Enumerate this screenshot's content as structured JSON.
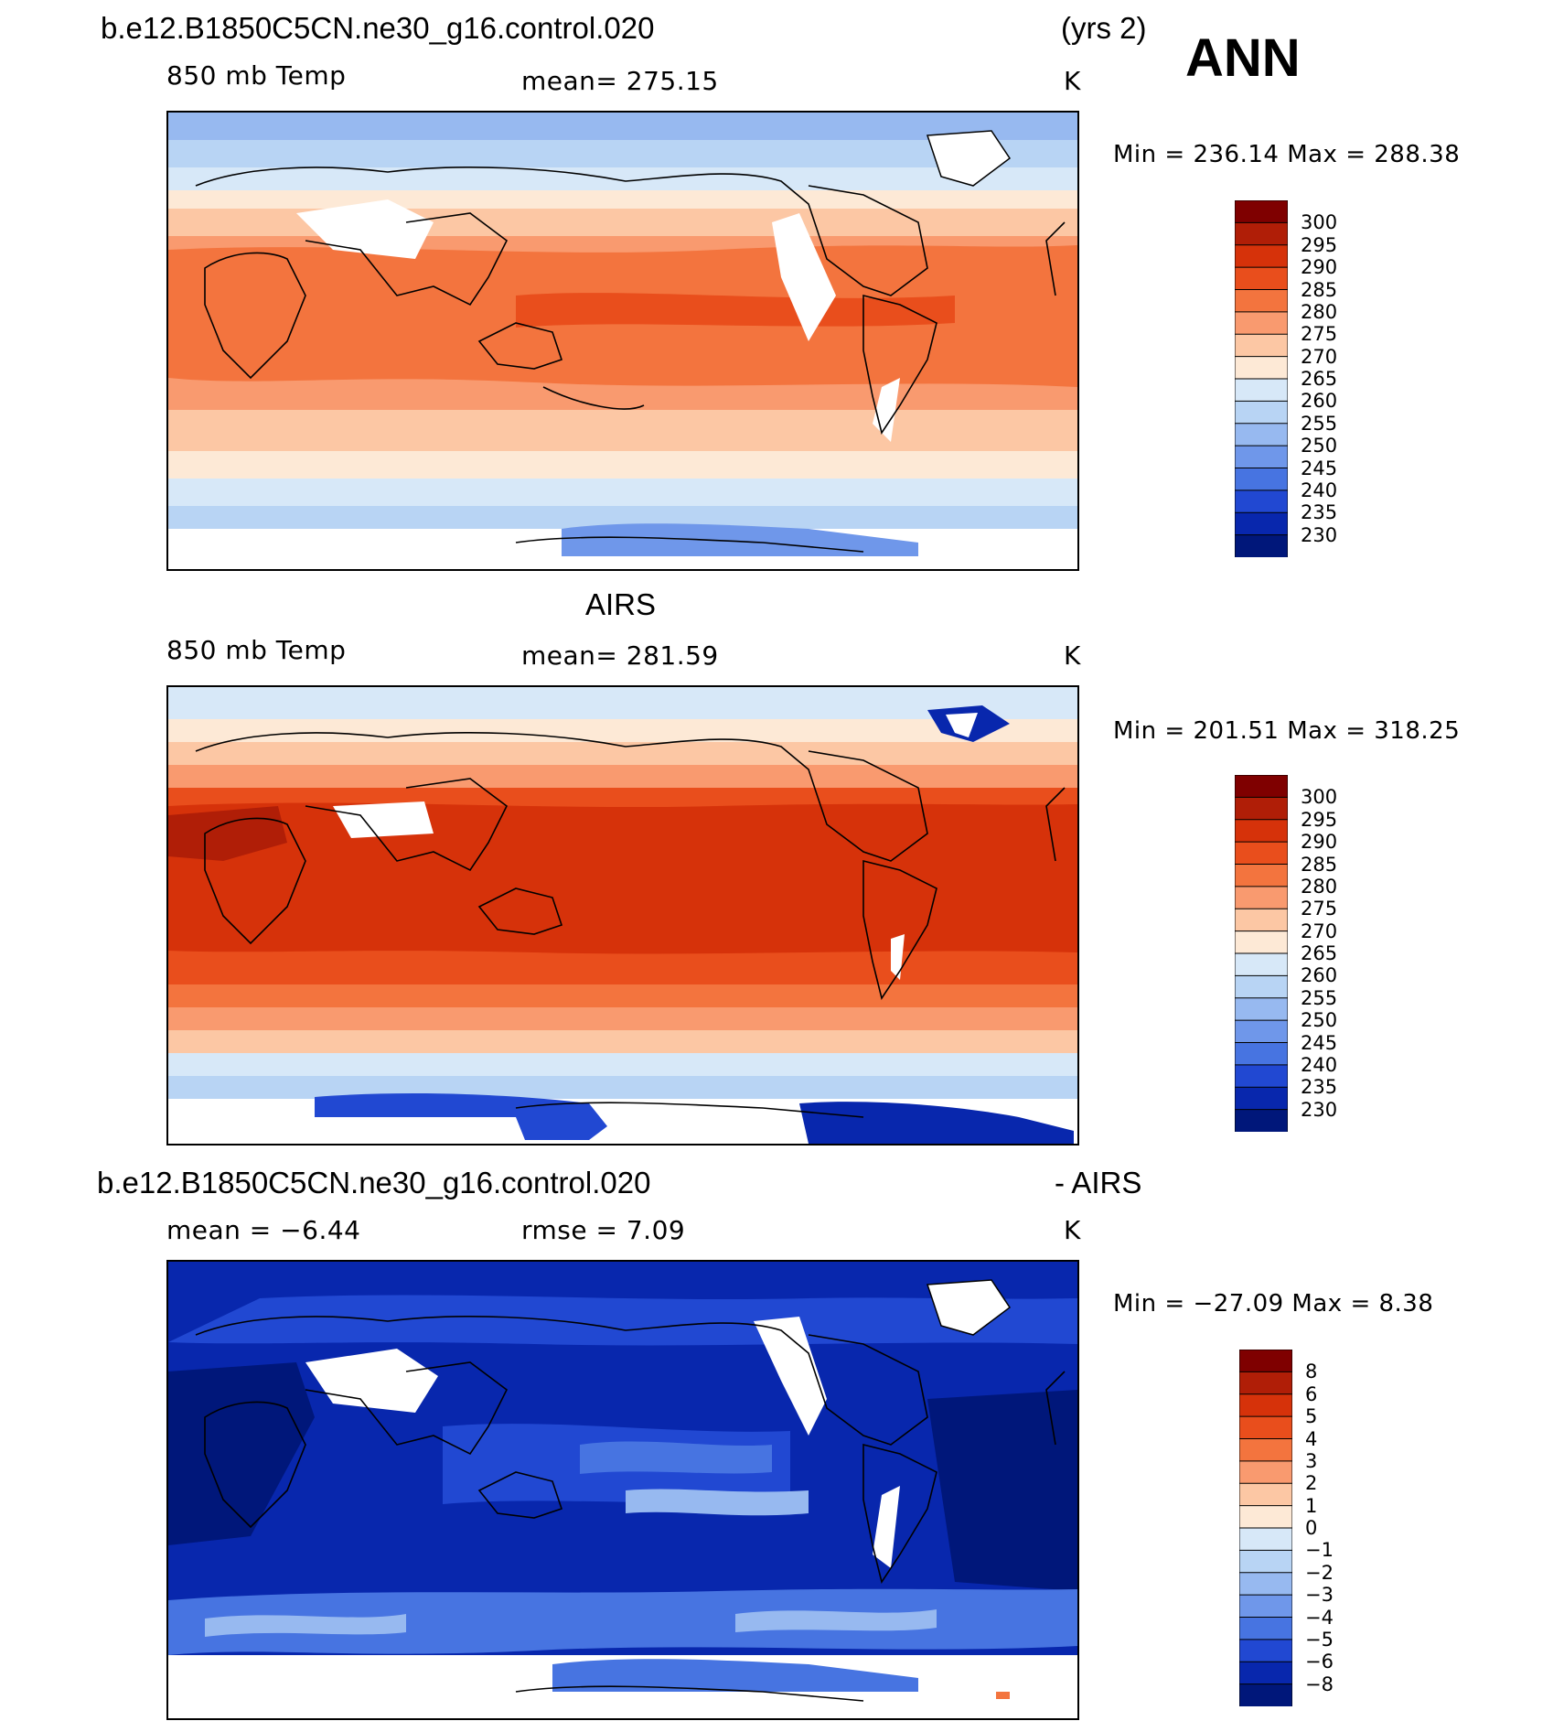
{
  "ann_label": "ANN",
  "panels": [
    {
      "id": "model",
      "title_left": "b.e12.B1850C5CN.ne30_g16.control.020",
      "title_right": "(yrs 2)",
      "stat_left": "850 mb Temp",
      "stat_mid": "mean=  275.15",
      "unit": "K",
      "minmax": "Min  =  236.14  Max  =  288.38",
      "colorbar_labels": [
        "300",
        "295",
        "290",
        "285",
        "280",
        "275",
        "270",
        "265",
        "260",
        "255",
        "250",
        "245",
        "240",
        "235",
        "230"
      ],
      "colorbar_colors": [
        "#7f0000",
        "#b01e07",
        "#d6320a",
        "#e94e1c",
        "#f3743e",
        "#f99a6f",
        "#fcc7a4",
        "#fde9d6",
        "#d7e8f8",
        "#b8d4f4",
        "#97b9f0",
        "#6f97ea",
        "#4774e1",
        "#2148d2",
        "#0827ad",
        "#00177a"
      ]
    },
    {
      "id": "obs",
      "title_center": "AIRS",
      "stat_left": "850 mb Temp",
      "stat_mid": "mean=  281.59",
      "unit": "K",
      "minmax": "Min  =  201.51  Max  =  318.25",
      "colorbar_labels": [
        "300",
        "295",
        "290",
        "285",
        "280",
        "275",
        "270",
        "265",
        "260",
        "255",
        "250",
        "245",
        "240",
        "235",
        "230"
      ],
      "colorbar_colors": [
        "#7f0000",
        "#b01e07",
        "#d6320a",
        "#e94e1c",
        "#f3743e",
        "#f99a6f",
        "#fcc7a4",
        "#fde9d6",
        "#d7e8f8",
        "#b8d4f4",
        "#97b9f0",
        "#6f97ea",
        "#4774e1",
        "#2148d2",
        "#0827ad",
        "#00177a"
      ]
    },
    {
      "id": "diff",
      "title_left": "b.e12.B1850C5CN.ne30_g16.control.020",
      "title_right": "- AIRS",
      "stat_left": "mean =    −6.44",
      "stat_mid": "rmse =     7.09",
      "unit": "K",
      "minmax": "Min  = −27.09  Max  =      8.38",
      "colorbar_labels": [
        "8",
        "6",
        "5",
        "4",
        "3",
        "2",
        "1",
        "0",
        "−1",
        "−2",
        "−3",
        "−4",
        "−5",
        "−6",
        "−8"
      ],
      "colorbar_colors": [
        "#7f0000",
        "#b01e07",
        "#d6320a",
        "#e94e1c",
        "#f3743e",
        "#f99a6f",
        "#fcc7a4",
        "#fde9d6",
        "#d7e8f8",
        "#b8d4f4",
        "#97b9f0",
        "#6f97ea",
        "#4774e1",
        "#2148d2",
        "#0827ad",
        "#00177a"
      ]
    }
  ]
}
